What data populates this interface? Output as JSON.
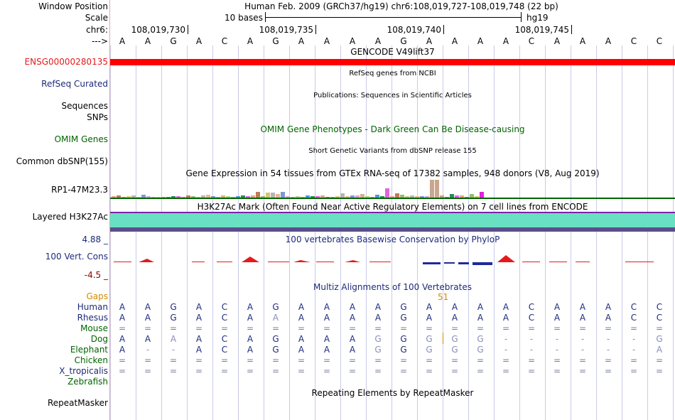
{
  "labels": {
    "window_position": "Window Position",
    "scale": "Scale",
    "chr": "chr6:",
    "arrow": "--->",
    "ensg": "ENSG00000280135",
    "refseq": "RefSeq Curated",
    "sequences": "Sequences",
    "snps": "SNPs",
    "omim": "OMIM Genes",
    "dbsnp": "Common dbSNP(155)",
    "rp1": "RP1-47M23.3",
    "h3k27ac": "Layered H3K27Ac",
    "cons_max": "4.88 _",
    "cons_name": "100 Vert. Cons",
    "cons_min": "-4.5 _",
    "gaps": "Gaps",
    "species": [
      "Human",
      "Rhesus",
      "Mouse",
      "Dog",
      "Elephant",
      "Chicken",
      "X_tropicalis",
      "Zebrafish"
    ],
    "repeatmasker": "RepeatMasker"
  },
  "header": {
    "position": "Human Feb. 2009 (GRCh37/hg19)   chr6:108,019,727-108,019,748 (22 bp)",
    "scale_text": "10 bases",
    "assembly": "hg19",
    "ruler_ticks": [
      "108,019,730",
      "108,019,735",
      "108,019,740",
      "108,019,745"
    ]
  },
  "sequence": [
    "A",
    "A",
    "G",
    "A",
    "C",
    "A",
    "G",
    "A",
    "A",
    "A",
    "A",
    "G",
    "A",
    "A",
    "A",
    "A",
    "C",
    "A",
    "A",
    "A",
    "C",
    "C"
  ],
  "tracks": {
    "gencode": "GENCODE V49lift37",
    "refseq": "RefSeq genes from NCBI",
    "publications": "Publications: Sequences in Scientific Articles",
    "omim": "OMIM Gene Phenotypes - Dark Green Can Be Disease-causing",
    "dbsnp": "Short Genetic Variants from dbSNP release 155",
    "gtex": "Gene Expression in 54 tissues from GTEx RNA-seq of 17382 samples, 948 donors (V8, Aug 2019)",
    "h3k27ac": "H3K27Ac Mark (Often Found Near Active Regulatory Elements) on 7 cell lines from ENCODE",
    "phylop": "100 vertebrates Basewise Conservation by PhyloP",
    "multiz": "Multiz Alignments of 100 Vertebrates",
    "gap_number": "51",
    "repeatmasker": "Repeating Elements by RepeatMasker"
  },
  "alignment": {
    "Human": [
      "A",
      "A",
      "G",
      "A",
      "C",
      "A",
      "G",
      "A",
      "A",
      "A",
      "A",
      "G",
      "A",
      "A",
      "A",
      "A",
      "C",
      "A",
      "A",
      "A",
      "C",
      "C"
    ],
    "Rhesus": [
      "A",
      "A",
      "G",
      "A",
      "C",
      "A",
      "A",
      "A",
      "A",
      "A",
      "A",
      "G",
      "A",
      "A",
      "A",
      "A",
      "C",
      "A",
      "A",
      "A",
      "C",
      "C"
    ],
    "Mouse": [
      "=",
      "=",
      "=",
      "=",
      "=",
      "=",
      "=",
      "=",
      "=",
      "=",
      "=",
      "=",
      "=",
      "=",
      "=",
      "=",
      "=",
      "=",
      "=",
      "=",
      "=",
      "="
    ],
    "Dog": [
      "A",
      "A",
      "A",
      "A",
      "C",
      "A",
      "G",
      "A",
      "A",
      "A",
      "G",
      "G",
      "G",
      "G",
      "G",
      "-",
      "-",
      "-",
      "-",
      "-",
      "-",
      "G"
    ],
    "Elephant": [
      "A",
      "-",
      "-",
      "A",
      "C",
      "A",
      "G",
      "A",
      "A",
      "A",
      "G",
      "G",
      "G",
      "G",
      "G",
      "-",
      "-",
      "-",
      "-",
      "-",
      "-",
      "A"
    ],
    "Chicken": [
      "=",
      "=",
      "=",
      "=",
      "=",
      "=",
      "=",
      "=",
      "=",
      "=",
      "=",
      "=",
      "=",
      "=",
      "=",
      "=",
      "=",
      "=",
      "=",
      "=",
      "=",
      "="
    ],
    "X_tropicalis": [
      "=",
      "=",
      "=",
      "=",
      "=",
      "=",
      "=",
      "=",
      "=",
      "=",
      "=",
      "=",
      "=",
      "=",
      "=",
      "=",
      "=",
      "=",
      "=",
      "=",
      "=",
      "="
    ],
    "Zebrafish": [
      "",
      "",
      "",
      "",
      "",
      "",
      "",
      "",
      "",
      "",
      "",
      "",
      "",
      "",
      "",
      "",
      "",
      "",
      "",
      "",
      "",
      ""
    ]
  },
  "gtex_values": [
    2,
    3,
    1,
    2,
    3,
    1,
    4,
    2,
    1,
    0,
    0,
    1,
    2,
    2,
    1,
    3,
    2,
    1,
    3,
    4,
    2,
    1,
    3,
    2,
    1,
    2,
    3,
    2,
    3,
    9,
    2,
    8,
    7,
    5,
    9,
    2,
    1,
    2,
    1,
    3,
    2,
    2,
    3,
    1,
    1,
    2,
    6,
    2,
    3,
    3,
    5,
    2,
    1,
    4,
    2,
    14,
    2,
    6,
    4,
    2,
    3,
    2,
    2,
    2,
    27,
    27,
    3,
    1,
    5,
    3,
    3,
    1,
    5,
    2,
    9
  ],
  "colors": {
    "ensg": "#e41a1c",
    "navy": "#1f2a7a",
    "green": "#006400",
    "gaps": "#d28a00",
    "teal": "#69e0c2",
    "purple": "#7a22a8"
  }
}
